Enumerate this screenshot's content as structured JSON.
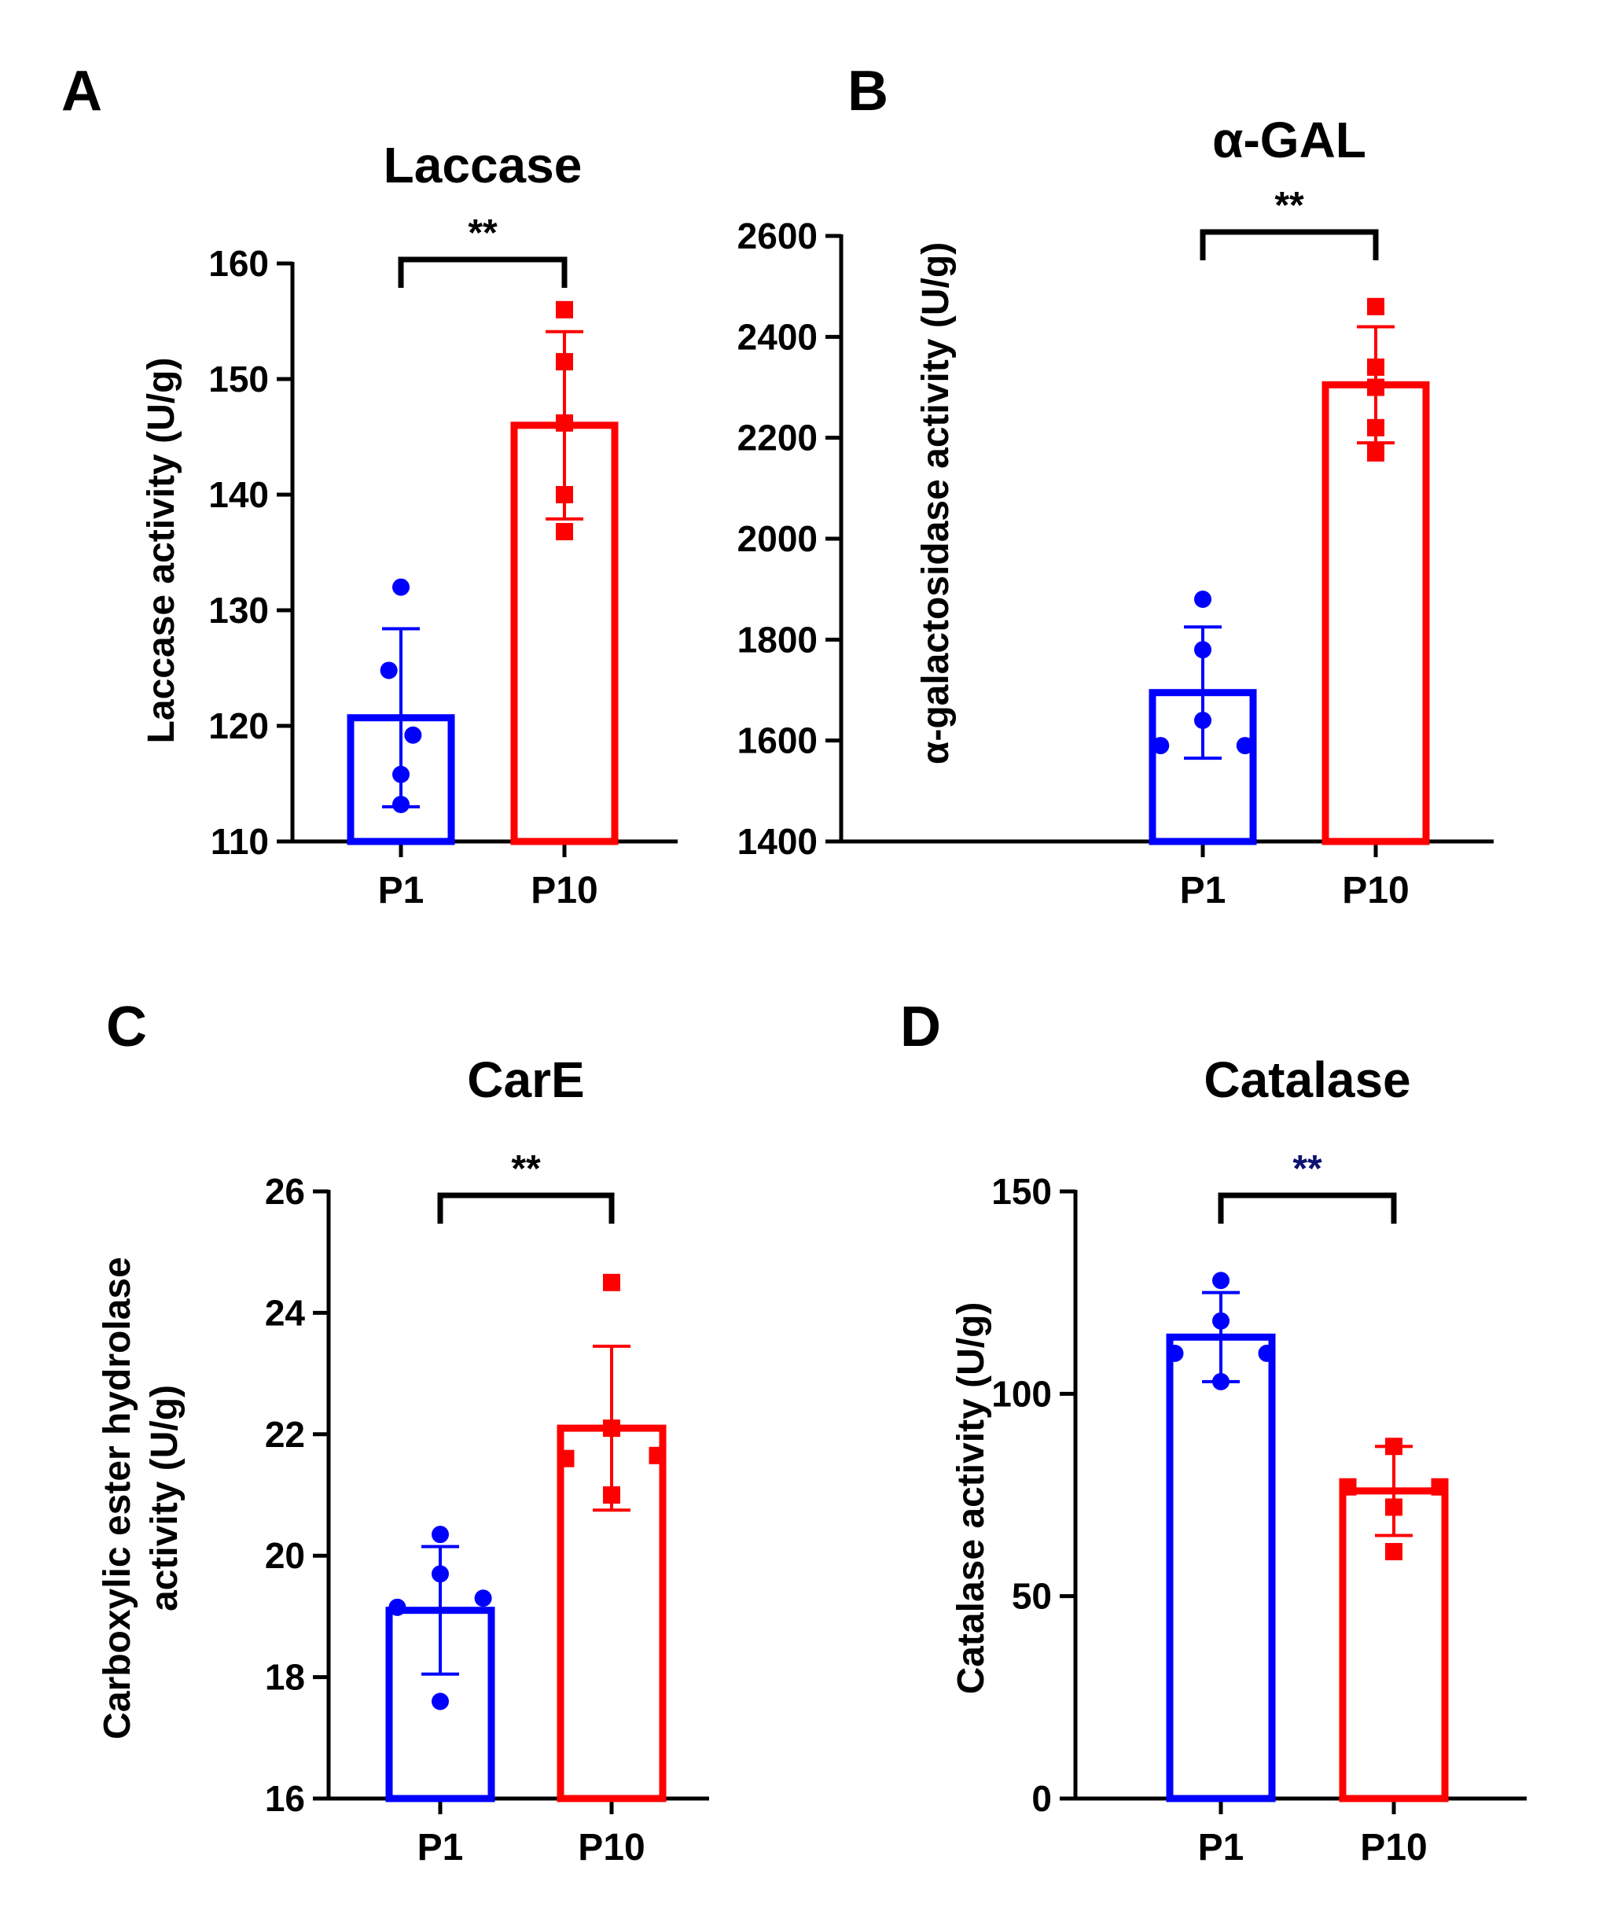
{
  "colors": {
    "p1": "#0000ff",
    "p10": "#ff0000",
    "axis": "#000000",
    "sig_default": "#000000",
    "sig_navy": "#0d1270"
  },
  "chart_data": [
    {
      "panel": "A",
      "type": "bar",
      "title": "Laccase",
      "ylabel": [
        "Laccase activity (U/g)"
      ],
      "categories": [
        "P1",
        "P10"
      ],
      "ylim": [
        110,
        160
      ],
      "yticks": [
        110,
        120,
        130,
        140,
        150,
        160
      ],
      "ytick_labels": [
        "110",
        "120",
        "130",
        "140",
        "150",
        "160"
      ],
      "series": [
        {
          "name": "P1",
          "color": "#0000ff",
          "marker": "circle",
          "mean": 120.7,
          "sd": 7.7,
          "points": [
            132,
            124.8,
            119.2,
            115.8,
            113.2
          ]
        },
        {
          "name": "P10",
          "color": "#ff0000",
          "marker": "square",
          "mean": 146,
          "sd": 8.1,
          "points": [
            156,
            151.5,
            146.2,
            140,
            136.8
          ]
        }
      ],
      "significance": {
        "label": "**",
        "color": "#000000"
      }
    },
    {
      "panel": "B",
      "type": "bar",
      "title": "α-GAL",
      "ylabel": [
        "α-galactosidase activity (U/g)"
      ],
      "categories": [
        "P1",
        "P10"
      ],
      "ylim": [
        1400,
        2600
      ],
      "yticks": [
        1400,
        1600,
        1800,
        2000,
        2200,
        2400,
        2600
      ],
      "ytick_labels": [
        "1400",
        "1600",
        "1800",
        "2000",
        "2200",
        "2400",
        "2600"
      ],
      "series": [
        {
          "name": "P1",
          "color": "#0000ff",
          "marker": "circle",
          "mean": 1695,
          "sd": 130,
          "points": [
            1880,
            1780,
            1640,
            1590,
            1590
          ]
        },
        {
          "name": "P10",
          "color": "#ff0000",
          "marker": "square",
          "mean": 2305,
          "sd": 115,
          "points": [
            2460,
            2340,
            2300,
            2220,
            2170
          ]
        }
      ],
      "significance": {
        "label": "**",
        "color": "#000000"
      }
    },
    {
      "panel": "C",
      "type": "bar",
      "title": "CarE",
      "ylabel": [
        "Carboxylic ester hydrolase",
        "activity (U/g)"
      ],
      "categories": [
        "P1",
        "P10"
      ],
      "ylim": [
        16,
        26
      ],
      "yticks": [
        16,
        18,
        20,
        22,
        24,
        26
      ],
      "ytick_labels": [
        "16",
        "18",
        "20",
        "22",
        "24",
        "26"
      ],
      "series": [
        {
          "name": "P1",
          "color": "#0000ff",
          "marker": "circle",
          "mean": 19.1,
          "sd": 1.05,
          "points": [
            20.35,
            19.7,
            19.3,
            19.15,
            17.6
          ]
        },
        {
          "name": "P10",
          "color": "#ff0000",
          "marker": "square",
          "mean": 22.1,
          "sd": 1.35,
          "points": [
            24.5,
            22.1,
            21.65,
            21.6,
            21.0
          ]
        }
      ],
      "significance": {
        "label": "**",
        "color": "#000000"
      }
    },
    {
      "panel": "D",
      "type": "bar",
      "title": "Catalase",
      "ylabel": [
        "Catalase activity (U/g)"
      ],
      "categories": [
        "P1",
        "P10"
      ],
      "ylim": [
        0,
        150
      ],
      "yticks": [
        0,
        50,
        100,
        150
      ],
      "ytick_labels": [
        "0",
        "50",
        "100",
        "150"
      ],
      "series": [
        {
          "name": "P1",
          "color": "#0000ff",
          "marker": "circle",
          "mean": 114,
          "sd": 11,
          "points": [
            128,
            118,
            110,
            110,
            103
          ]
        },
        {
          "name": "P10",
          "color": "#ff0000",
          "marker": "square",
          "mean": 76,
          "sd": 11,
          "points": [
            87,
            77,
            77,
            72,
            61
          ]
        }
      ],
      "significance": {
        "label": "**",
        "color": "#0d1270"
      }
    }
  ]
}
